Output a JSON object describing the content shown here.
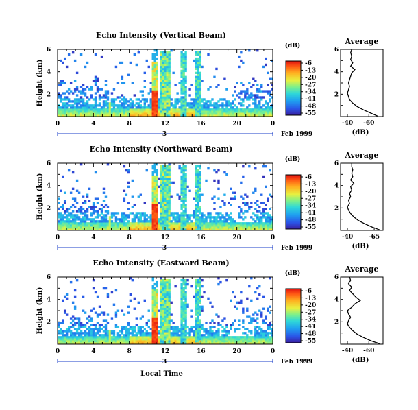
{
  "chart_data": [
    {
      "id": "vertical",
      "type": "heatmap",
      "title": "Echo Intensity (Vertical Beam)",
      "ylabel": "Height (km)",
      "x": {
        "range": [
          0,
          24
        ],
        "ticks": [
          "0",
          "4",
          "8",
          "12",
          "16",
          "20",
          "0"
        ]
      },
      "y": {
        "range": [
          0,
          6
        ],
        "ticks": [
          "2",
          "4",
          "6"
        ]
      },
      "day_marker": "3",
      "date_label": "Feb 1999",
      "colorbar": {
        "unit": "(dB)",
        "ticks": [
          "-6",
          "-13",
          "-20",
          "-27",
          "-34",
          "-41",
          "-48",
          "-55"
        ]
      },
      "profile": {
        "title": "Average",
        "xlabel": "(dB)",
        "xticks": [
          "-40",
          "-60"
        ],
        "yticks": [
          "2",
          "4",
          "6"
        ],
        "height": [
          0.05,
          0.3,
          0.6,
          0.9,
          1.2,
          1.5,
          1.8,
          2.1,
          2.4,
          2.7,
          3.0,
          3.3,
          3.6,
          3.9,
          4.2,
          4.5,
          4.8,
          5.1,
          5.4,
          5.7,
          6.0
        ],
        "db": [
          -68,
          -62,
          -55,
          -49,
          -45,
          -42,
          -41,
          -40,
          -41,
          -42,
          -41,
          -42,
          -43,
          -44,
          -47,
          -43,
          -45,
          -43,
          -44,
          -43,
          -44
        ]
      }
    },
    {
      "id": "northward",
      "type": "heatmap",
      "title": "Echo Intensity (Northward Beam)",
      "ylabel": "Height (km)",
      "x": {
        "range": [
          0,
          24
        ],
        "ticks": [
          "0",
          "4",
          "8",
          "12",
          "16",
          "20",
          "0"
        ]
      },
      "y": {
        "range": [
          0,
          6
        ],
        "ticks": [
          "2",
          "4",
          "6"
        ]
      },
      "day_marker": "3",
      "date_label": "Feb 1999",
      "colorbar": {
        "unit": "(dB)",
        "ticks": [
          "-6",
          "-13",
          "-20",
          "-27",
          "-34",
          "-41",
          "-48",
          "-55"
        ]
      },
      "profile": {
        "title": "Average",
        "xlabel": "(dB)",
        "xticks": [
          "-40",
          "-65"
        ],
        "yticks": [
          "2",
          "4",
          "6"
        ],
        "height": [
          0.05,
          0.3,
          0.6,
          0.9,
          1.2,
          1.5,
          1.8,
          2.1,
          2.4,
          2.7,
          3.0,
          3.3,
          3.6,
          3.9,
          4.2,
          4.5,
          4.8,
          5.1,
          5.4,
          5.7,
          6.0
        ],
        "db": [
          -70,
          -63,
          -56,
          -50,
          -46,
          -43,
          -41,
          -40,
          -42,
          -41,
          -43,
          -42,
          -44,
          -43,
          -46,
          -43,
          -45,
          -44,
          -45,
          -44,
          -44
        ]
      }
    },
    {
      "id": "eastward",
      "type": "heatmap",
      "title": "Echo Intensity (Eastward Beam)",
      "ylabel": "Height (km)",
      "x": {
        "range": [
          0,
          24
        ],
        "ticks": [
          "0",
          "4",
          "8",
          "12",
          "16",
          "20",
          "0"
        ]
      },
      "y": {
        "range": [
          0,
          6
        ],
        "ticks": [
          "2",
          "4",
          "6"
        ]
      },
      "day_marker": "3",
      "date_label": "Feb 1999",
      "xlabel": "Local Time",
      "colorbar": {
        "unit": "(dB)",
        "ticks": [
          "-6",
          "-13",
          "-20",
          "-27",
          "-34",
          "-41",
          "-48",
          "-55"
        ]
      },
      "profile": {
        "title": "Average",
        "xlabel": "(dB)",
        "xticks": [
          "-40",
          "-60"
        ],
        "yticks": [
          "2",
          "4",
          "6"
        ],
        "height": [
          0.05,
          0.3,
          0.6,
          0.9,
          1.2,
          1.5,
          1.8,
          2.1,
          2.4,
          2.7,
          3.0,
          3.3,
          3.6,
          3.9,
          4.2,
          4.5,
          4.8,
          5.1,
          5.4,
          5.7,
          6.0
        ],
        "db": [
          -70,
          -62,
          -55,
          -49,
          -45,
          -42,
          -40,
          -41,
          -43,
          -41,
          -40,
          -44,
          -47,
          -52,
          -48,
          -45,
          -42,
          -44,
          -41,
          -43,
          -42
        ]
      }
    }
  ]
}
